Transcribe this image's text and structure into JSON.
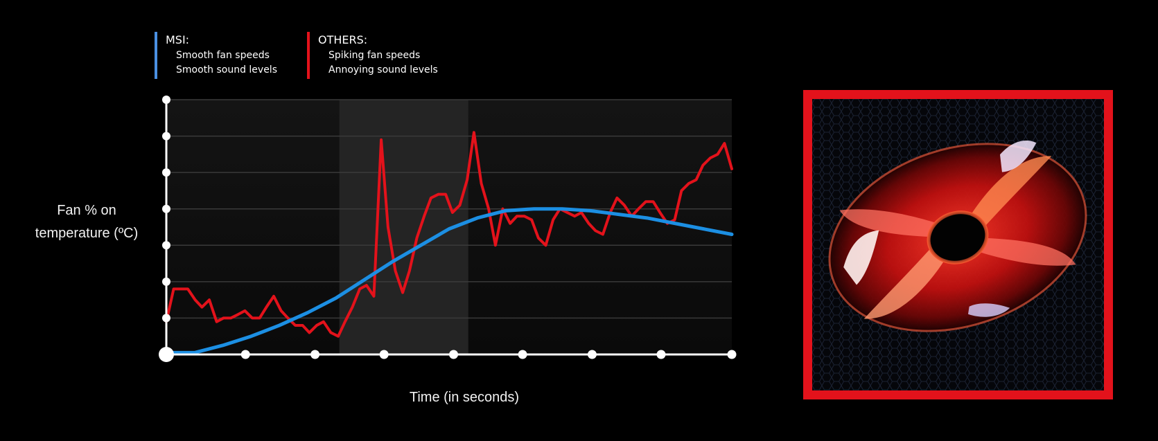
{
  "legend": {
    "msi": {
      "title": "MSI:",
      "items": [
        "Smooth fan speeds",
        "Smooth sound levels"
      ],
      "color": "#4a90e2"
    },
    "others": {
      "title": "OTHERS:",
      "items": [
        "Spiking fan speeds",
        "Annoying sound levels"
      ],
      "color": "#e3121b"
    }
  },
  "chart_data": {
    "type": "line",
    "ylabel": "Fan % on temperature (ºC)",
    "xlabel": "Time (in seconds)",
    "xlim": [
      0,
      100
    ],
    "ylim": [
      0,
      7
    ],
    "x_ticks": [
      0,
      14,
      26.3,
      38.5,
      50.8,
      63,
      75.3,
      87.5,
      100
    ],
    "y_ticks": [
      0,
      1,
      2,
      3,
      4,
      5,
      6,
      7
    ],
    "grid": true,
    "highlight_band": [
      30.6,
      53.4
    ],
    "series": [
      {
        "name": "OTHERS",
        "color": "#e3121b",
        "x": [
          0,
          1.3,
          2.5,
          3.8,
          5.1,
          6.3,
          7.6,
          8.9,
          10.1,
          11.4,
          12.7,
          13.9,
          15.2,
          16.5,
          17.7,
          19,
          20.3,
          21.5,
          22.8,
          24.1,
          25.3,
          26.6,
          27.8,
          29.1,
          30.4,
          31.6,
          32.9,
          34.2,
          35.4,
          36.7,
          38,
          39.2,
          40.5,
          41.8,
          43,
          44.3,
          45.6,
          46.8,
          48.1,
          49.4,
          50.6,
          51.9,
          53.2,
          54.4,
          55.7,
          57,
          58.2,
          59.5,
          60.8,
          62,
          63.3,
          64.6,
          65.8,
          67.1,
          68.4,
          69.6,
          70.9,
          72.2,
          73.4,
          74.7,
          75.9,
          77.2,
          78.5,
          79.7,
          81,
          82.3,
          83.5,
          84.8,
          86.1,
          87.3,
          88.6,
          89.9,
          91.1,
          92.4,
          93.7,
          94.9,
          96.2,
          97.5,
          98.7,
          100
        ],
        "values": [
          0.9,
          1.8,
          1.8,
          1.8,
          1.5,
          1.3,
          1.5,
          0.9,
          1.0,
          1.0,
          1.1,
          1.2,
          1.0,
          1.0,
          1.3,
          1.6,
          1.2,
          1.0,
          0.8,
          0.8,
          0.6,
          0.8,
          0.9,
          0.6,
          0.5,
          0.9,
          1.3,
          1.8,
          1.9,
          1.6,
          5.9,
          3.5,
          2.3,
          1.7,
          2.3,
          3.2,
          3.8,
          4.3,
          4.4,
          4.4,
          3.9,
          4.1,
          4.8,
          6.1,
          4.7,
          4.0,
          3.0,
          4.0,
          3.6,
          3.8,
          3.8,
          3.7,
          3.2,
          3.0,
          3.7,
          4.0,
          3.9,
          3.8,
          3.9,
          3.6,
          3.4,
          3.3,
          3.9,
          4.3,
          4.1,
          3.8,
          4.0,
          4.2,
          4.2,
          3.9,
          3.6,
          3.7,
          4.5,
          4.7,
          4.8,
          5.2,
          5.4,
          5.5,
          5.8,
          5.1
        ]
      },
      {
        "name": "MSI",
        "color": "#1c8fe3",
        "x": [
          0,
          5,
          10,
          15,
          20,
          25,
          30,
          35,
          40,
          45,
          50,
          55,
          60,
          65,
          70,
          75,
          80,
          85,
          90,
          95,
          100
        ],
        "values": [
          0.05,
          0.05,
          0.25,
          0.5,
          0.8,
          1.15,
          1.55,
          2.05,
          2.55,
          3.0,
          3.45,
          3.75,
          3.95,
          4.0,
          4.0,
          3.95,
          3.85,
          3.75,
          3.6,
          3.45,
          3.3
        ]
      }
    ]
  },
  "fan_image": {
    "description_icon": "red-led-fan-image",
    "frame_color": "#e3121b"
  }
}
